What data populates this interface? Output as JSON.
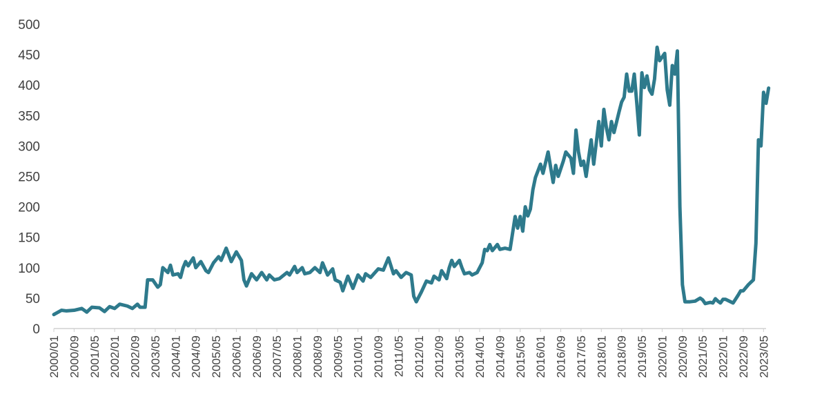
{
  "chart_data": {
    "type": "line",
    "title": "",
    "xlabel": "",
    "ylabel": "",
    "ylim": [
      0,
      500
    ],
    "yticks": [
      0,
      50,
      100,
      150,
      200,
      250,
      300,
      350,
      400,
      450,
      500
    ],
    "xlim": [
      "2000/01",
      "2023/06"
    ],
    "xtick_labels": [
      "2000/01",
      "2000/09",
      "2001/05",
      "2002/01",
      "2002/09",
      "2003/05",
      "2004/01",
      "2004/09",
      "2005/05",
      "2006/01",
      "2006/09",
      "2007/05",
      "2008/01",
      "2008/09",
      "2009/05",
      "2010/01",
      "2010/09",
      "2011/05",
      "2012/01",
      "2012/09",
      "2013/05",
      "2014/01",
      "2014/09",
      "2015/05",
      "2016/01",
      "2016/09",
      "2017/05",
      "2018/01",
      "2018/09",
      "2019/05",
      "2020/01",
      "2020/09",
      "2021/05",
      "2022/01",
      "2022/09",
      "2023/05"
    ],
    "grid": false,
    "legend": "none",
    "series": [
      {
        "color": "#2e7a8c",
        "points": [
          [
            "2000/01",
            23
          ],
          [
            "2000/04",
            30
          ],
          [
            "2000/06",
            29
          ],
          [
            "2000/09",
            30
          ],
          [
            "2000/12",
            33
          ],
          [
            "2001/02",
            27
          ],
          [
            "2001/04",
            35
          ],
          [
            "2001/07",
            34
          ],
          [
            "2001/09",
            28
          ],
          [
            "2001/11",
            36
          ],
          [
            "2002/01",
            33
          ],
          [
            "2002/03",
            40
          ],
          [
            "2002/06",
            37
          ],
          [
            "2002/08",
            33
          ],
          [
            "2002/10",
            40
          ],
          [
            "2002/11",
            35
          ],
          [
            "2003/01",
            35
          ],
          [
            "2003/02",
            80
          ],
          [
            "2003/04",
            80
          ],
          [
            "2003/06",
            68
          ],
          [
            "2003/07",
            72
          ],
          [
            "2003/08",
            100
          ],
          [
            "2003/10",
            92
          ],
          [
            "2003/11",
            104
          ],
          [
            "2003/12",
            88
          ],
          [
            "2004/02",
            90
          ],
          [
            "2004/03",
            84
          ],
          [
            "2004/04",
            100
          ],
          [
            "2004/05",
            110
          ],
          [
            "2004/06",
            103
          ],
          [
            "2004/08",
            116
          ],
          [
            "2004/09",
            100
          ],
          [
            "2004/11",
            110
          ],
          [
            "2005/01",
            95
          ],
          [
            "2005/02",
            92
          ],
          [
            "2005/04",
            108
          ],
          [
            "2005/06",
            118
          ],
          [
            "2005/07",
            112
          ],
          [
            "2005/08",
            122
          ],
          [
            "2005/09",
            132
          ],
          [
            "2005/11",
            110
          ],
          [
            "2006/01",
            126
          ],
          [
            "2006/03",
            112
          ],
          [
            "2006/04",
            80
          ],
          [
            "2006/05",
            70
          ],
          [
            "2006/07",
            90
          ],
          [
            "2006/09",
            80
          ],
          [
            "2006/11",
            92
          ],
          [
            "2007/01",
            80
          ],
          [
            "2007/02",
            88
          ],
          [
            "2007/04",
            80
          ],
          [
            "2007/06",
            82
          ],
          [
            "2007/09",
            92
          ],
          [
            "2007/10",
            88
          ],
          [
            "2007/12",
            102
          ],
          [
            "2008/01",
            92
          ],
          [
            "2008/03",
            100
          ],
          [
            "2008/04",
            90
          ],
          [
            "2008/06",
            92
          ],
          [
            "2008/08",
            100
          ],
          [
            "2008/10",
            92
          ],
          [
            "2008/11",
            108
          ],
          [
            "2009/01",
            88
          ],
          [
            "2009/03",
            98
          ],
          [
            "2009/04",
            80
          ],
          [
            "2009/06",
            76
          ],
          [
            "2009/07",
            62
          ],
          [
            "2009/09",
            86
          ],
          [
            "2009/11",
            66
          ],
          [
            "2010/01",
            88
          ],
          [
            "2010/03",
            78
          ],
          [
            "2010/04",
            90
          ],
          [
            "2010/06",
            84
          ],
          [
            "2010/09",
            98
          ],
          [
            "2010/11",
            96
          ],
          [
            "2011/01",
            116
          ],
          [
            "2011/03",
            90
          ],
          [
            "2011/04",
            95
          ],
          [
            "2011/06",
            84
          ],
          [
            "2011/08",
            92
          ],
          [
            "2011/10",
            88
          ],
          [
            "2011/11",
            53
          ],
          [
            "2011/12",
            44
          ],
          [
            "2012/02",
            60
          ],
          [
            "2012/04",
            78
          ],
          [
            "2012/06",
            75
          ],
          [
            "2012/07",
            86
          ],
          [
            "2012/09",
            80
          ],
          [
            "2012/10",
            95
          ],
          [
            "2012/12",
            82
          ],
          [
            "2013/01",
            100
          ],
          [
            "2013/02",
            112
          ],
          [
            "2013/03",
            102
          ],
          [
            "2013/05",
            112
          ],
          [
            "2013/06",
            100
          ],
          [
            "2013/07",
            90
          ],
          [
            "2013/09",
            92
          ],
          [
            "2013/10",
            88
          ],
          [
            "2013/12",
            92
          ],
          [
            "2014/02",
            108
          ],
          [
            "2014/03",
            130
          ],
          [
            "2014/04",
            128
          ],
          [
            "2014/05",
            138
          ],
          [
            "2014/06",
            128
          ],
          [
            "2014/08",
            138
          ],
          [
            "2014/09",
            130
          ],
          [
            "2014/11",
            132
          ],
          [
            "2015/01",
            130
          ],
          [
            "2015/03",
            184
          ],
          [
            "2015/04",
            165
          ],
          [
            "2015/05",
            184
          ],
          [
            "2015/06",
            160
          ],
          [
            "2015/07",
            200
          ],
          [
            "2015/08",
            185
          ],
          [
            "2015/09",
            196
          ],
          [
            "2015/10",
            228
          ],
          [
            "2015/11",
            248
          ],
          [
            "2016/01",
            270
          ],
          [
            "2016/02",
            255
          ],
          [
            "2016/04",
            290
          ],
          [
            "2016/06",
            240
          ],
          [
            "2016/07",
            268
          ],
          [
            "2016/08",
            250
          ],
          [
            "2016/10",
            275
          ],
          [
            "2016/11",
            290
          ],
          [
            "2017/01",
            280
          ],
          [
            "2017/02",
            255
          ],
          [
            "2017/03",
            326
          ],
          [
            "2017/04",
            290
          ],
          [
            "2017/05",
            268
          ],
          [
            "2017/06",
            275
          ],
          [
            "2017/07",
            250
          ],
          [
            "2017/09",
            310
          ],
          [
            "2017/10",
            270
          ],
          [
            "2017/12",
            340
          ],
          [
            "2018/01",
            300
          ],
          [
            "2018/02",
            360
          ],
          [
            "2018/03",
            330
          ],
          [
            "2018/04",
            310
          ],
          [
            "2018/05",
            340
          ],
          [
            "2018/06",
            322
          ],
          [
            "2018/08",
            356
          ],
          [
            "2018/09",
            372
          ],
          [
            "2018/10",
            380
          ],
          [
            "2018/11",
            418
          ],
          [
            "2018/12",
            390
          ],
          [
            "2019/01",
            390
          ],
          [
            "2019/02",
            418
          ],
          [
            "2019/03",
            370
          ],
          [
            "2019/04",
            318
          ],
          [
            "2019/05",
            420
          ],
          [
            "2019/06",
            396
          ],
          [
            "2019/07",
            415
          ],
          [
            "2019/08",
            392
          ],
          [
            "2019/09",
            385
          ],
          [
            "2019/10",
            410
          ],
          [
            "2019/11",
            462
          ],
          [
            "2019/12",
            440
          ],
          [
            "2020/02",
            452
          ],
          [
            "2020/03",
            392
          ],
          [
            "2020/04",
            367
          ],
          [
            "2020/05",
            432
          ],
          [
            "2020/06",
            418
          ],
          [
            "2020/07",
            456
          ],
          [
            "2020/08",
            200
          ],
          [
            "2020/09",
            72
          ],
          [
            "2020/10",
            44
          ],
          [
            "2020/12",
            44
          ],
          [
            "2021/02",
            45
          ],
          [
            "2021/04",
            50
          ],
          [
            "2021/05",
            47
          ],
          [
            "2021/06",
            41
          ],
          [
            "2021/08",
            43
          ],
          [
            "2021/09",
            42
          ],
          [
            "2021/10",
            49
          ],
          [
            "2021/11",
            45
          ],
          [
            "2021/12",
            42
          ],
          [
            "2022/01",
            48
          ],
          [
            "2022/02",
            48
          ],
          [
            "2022/04",
            44
          ],
          [
            "2022/05",
            42
          ],
          [
            "2022/07",
            55
          ],
          [
            "2022/08",
            62
          ],
          [
            "2022/09",
            62
          ],
          [
            "2022/11",
            72
          ],
          [
            "2022/12",
            76
          ],
          [
            "2023/01",
            80
          ],
          [
            "2023/02",
            140
          ],
          [
            "2023/03",
            310
          ],
          [
            "2023/04",
            300
          ],
          [
            "2023/05",
            388
          ],
          [
            "2023/06",
            370
          ],
          [
            "2023/07",
            395
          ]
        ]
      }
    ]
  }
}
